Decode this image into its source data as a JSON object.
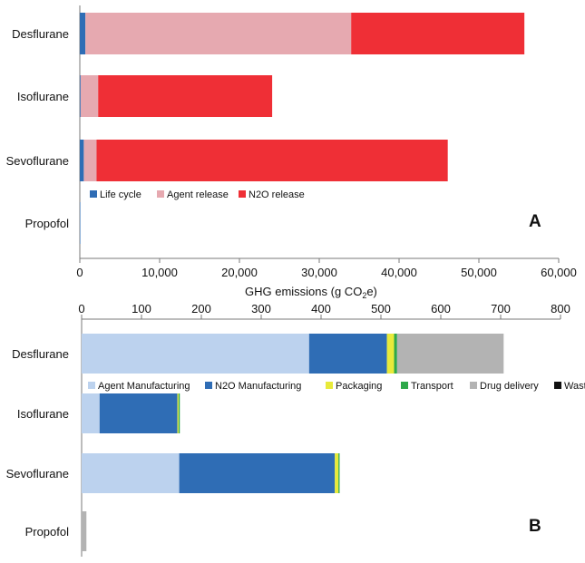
{
  "chart_data": [
    {
      "type": "bar",
      "orientation": "horizontal",
      "stacked": true,
      "panel_label": "A",
      "categories": [
        "Desflurane",
        "Isoflurane",
        "Sevoflurane",
        "Propofol"
      ],
      "series": [
        {
          "name": "Life cycle",
          "color": "#2f6db5",
          "values": [
            700,
            100,
            500,
            60
          ]
        },
        {
          "name": "Agent release",
          "color": "#e6a9b0",
          "values": [
            33300,
            2200,
            1600,
            0
          ]
        },
        {
          "name": "N2O release",
          "color": "#ef2f36",
          "values": [
            21700,
            21800,
            44000,
            0
          ]
        }
      ],
      "xlabel": "GHG emissions (g CO2e)",
      "xlim": [
        0,
        60000
      ],
      "xticks": [
        "0",
        "10,000",
        "20,000",
        "30,000",
        "40,000",
        "50,000",
        "60,000"
      ],
      "legend": "bottom-center"
    },
    {
      "type": "bar",
      "orientation": "horizontal",
      "stacked": true,
      "panel_label": "B",
      "categories": [
        "Desflurane",
        "Isoflurane",
        "Sevoflurane",
        "Propofol"
      ],
      "series": [
        {
          "name": "Agent Manufacturing",
          "color": "#bcd2ee",
          "values": [
            380,
            30,
            163,
            0
          ]
        },
        {
          "name": "N2O Manufacturing",
          "color": "#2f6db5",
          "values": [
            130,
            130,
            260,
            0
          ]
        },
        {
          "name": "Packaging",
          "color": "#e8ea3a",
          "values": [
            12,
            2,
            6,
            0
          ]
        },
        {
          "name": "Transport",
          "color": "#2ea84a",
          "values": [
            5,
            2,
            2,
            0
          ]
        },
        {
          "name": "Drug delivery",
          "color": "#b3b3b3",
          "values": [
            178,
            0,
            0,
            8
          ]
        },
        {
          "name": "Waste mgmt",
          "color": "#111111",
          "values": [
            0,
            0,
            0,
            0
          ]
        }
      ],
      "xlim": [
        0,
        800
      ],
      "xticks": [
        "0",
        "100",
        "200",
        "300",
        "400",
        "500",
        "600",
        "700",
        "800"
      ],
      "legend": "top-center"
    }
  ],
  "axis_label": {
    "main": "GHG emissions (g CO",
    "subscript": "2",
    "suffix": "e)"
  }
}
